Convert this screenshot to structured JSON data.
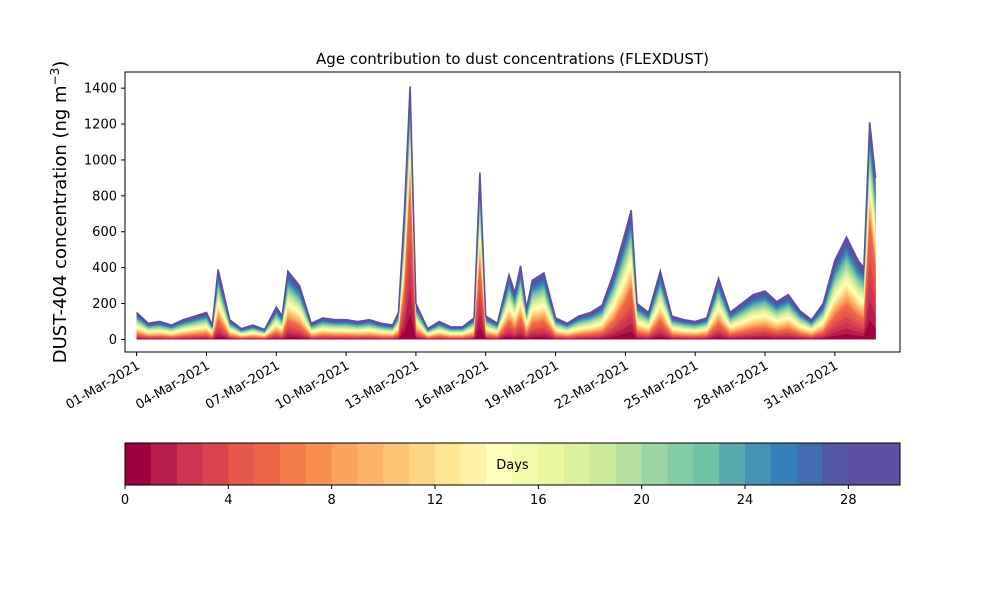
{
  "chart_data": {
    "type": "area",
    "title": "Age contribution to dust concentrations (FLEXDUST)",
    "ylabel": "DUST-404 concentration (ng m⁻³)",
    "xlabel": "",
    "ylim": [
      -70,
      1490
    ],
    "y_ticks": [
      0,
      200,
      400,
      600,
      800,
      1000,
      1200,
      1400
    ],
    "x_range_days": [
      -0.5,
      32.8
    ],
    "x_ticks": [
      "01-Mar-2021",
      "04-Mar-2021",
      "07-Mar-2021",
      "10-Mar-2021",
      "13-Mar-2021",
      "16-Mar-2021",
      "19-Mar-2021",
      "22-Mar-2021",
      "25-Mar-2021",
      "28-Mar-2021",
      "31-Mar-2021"
    ],
    "grid": false,
    "total_concentration": {
      "dates": [
        "01-Mar-2021 00:00",
        "01-Mar-2021 12:00",
        "02-Mar-2021 00:00",
        "02-Mar-2021 12:00",
        "03-Mar-2021 00:00",
        "03-Mar-2021 12:00",
        "04-Mar-2021 00:00",
        "04-Mar-2021 06:00",
        "04-Mar-2021 12:00",
        "05-Mar-2021 00:00",
        "05-Mar-2021 12:00",
        "06-Mar-2021 00:00",
        "06-Mar-2021 12:00",
        "07-Mar-2021 00:00",
        "07-Mar-2021 06:00",
        "07-Mar-2021 12:00",
        "08-Mar-2021 00:00",
        "08-Mar-2021 12:00",
        "09-Mar-2021 00:00",
        "09-Mar-2021 12:00",
        "10-Mar-2021 00:00",
        "10-Mar-2021 12:00",
        "11-Mar-2021 00:00",
        "11-Mar-2021 12:00",
        "12-Mar-2021 00:00",
        "12-Mar-2021 06:00",
        "12-Mar-2021 12:00",
        "12-Mar-2021 18:00",
        "13-Mar-2021 00:00",
        "13-Mar-2021 12:00",
        "14-Mar-2021 00:00",
        "14-Mar-2021 12:00",
        "15-Mar-2021 00:00",
        "15-Mar-2021 12:00",
        "15-Mar-2021 18:00",
        "16-Mar-2021 00:00",
        "16-Mar-2021 12:00",
        "17-Mar-2021 00:00",
        "17-Mar-2021 06:00",
        "17-Mar-2021 12:00",
        "17-Mar-2021 18:00",
        "18-Mar-2021 00:00",
        "18-Mar-2021 12:00",
        "19-Mar-2021 00:00",
        "19-Mar-2021 12:00",
        "20-Mar-2021 00:00",
        "20-Mar-2021 12:00",
        "21-Mar-2021 00:00",
        "21-Mar-2021 12:00",
        "22-Mar-2021 00:00",
        "22-Mar-2021 06:00",
        "22-Mar-2021 12:00",
        "23-Mar-2021 00:00",
        "23-Mar-2021 12:00",
        "24-Mar-2021 00:00",
        "24-Mar-2021 12:00",
        "25-Mar-2021 00:00",
        "25-Mar-2021 12:00",
        "26-Mar-2021 00:00",
        "26-Mar-2021 12:00",
        "27-Mar-2021 00:00",
        "27-Mar-2021 12:00",
        "28-Mar-2021 00:00",
        "28-Mar-2021 12:00",
        "29-Mar-2021 00:00",
        "29-Mar-2021 12:00",
        "30-Mar-2021 00:00",
        "30-Mar-2021 12:00",
        "31-Mar-2021 00:00",
        "31-Mar-2021 12:00",
        "01-Apr-2021 00:00",
        "01-Apr-2021 06:00",
        "01-Apr-2021 12:00",
        "01-Apr-2021 18:00"
      ],
      "values": [
        150,
        90,
        100,
        80,
        110,
        130,
        150,
        80,
        390,
        110,
        60,
        80,
        55,
        180,
        130,
        380,
        300,
        90,
        120,
        110,
        110,
        100,
        110,
        90,
        80,
        150,
        700,
        1410,
        200,
        60,
        100,
        70,
        70,
        120,
        930,
        130,
        90,
        360,
        260,
        410,
        170,
        330,
        370,
        120,
        90,
        130,
        150,
        190,
        370,
        600,
        720,
        200,
        150,
        380,
        130,
        110,
        100,
        120,
        340,
        150,
        200,
        250,
        270,
        210,
        250,
        160,
        110,
        200,
        440,
        570,
        440,
        400,
        1210,
        900
      ]
    }
  },
  "colorbar": {
    "label": "Days",
    "range": [
      0,
      30
    ],
    "ticks": [
      "0",
      "4",
      "8",
      "12",
      "16",
      "20",
      "24",
      "28"
    ],
    "colors": [
      "#9e0142",
      "#b51d4a",
      "#cd3451",
      "#d8434e",
      "#e65848",
      "#ed6446",
      "#f47c4a",
      "#f88f51",
      "#fba35c",
      "#fdb466",
      "#fdc574",
      "#fed583",
      "#fee695",
      "#fff3a9",
      "#ffffbe",
      "#f4faac",
      "#eaf79e",
      "#dbf19f",
      "#cbea9e",
      "#b3e0a2",
      "#9bd5a4",
      "#82cba5",
      "#70c2a5",
      "#57a8ae",
      "#4394b5",
      "#3580b9",
      "#426db1",
      "#5357a3",
      "#5e4fa2",
      "#5e4fa2"
    ]
  }
}
